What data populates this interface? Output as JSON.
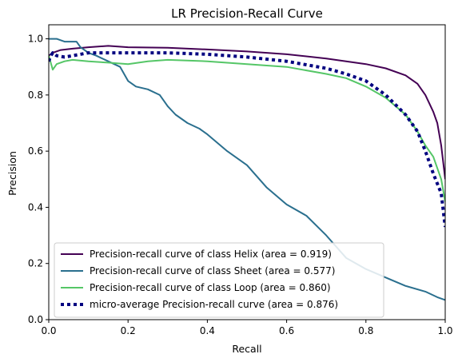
{
  "chart_data": {
    "type": "line",
    "title": "LR Precision-Recall Curve",
    "xlabel": "Recall",
    "ylabel": "Precision",
    "xlim": [
      0,
      1
    ],
    "ylim": [
      0,
      1.05
    ],
    "xticks": [
      "0.0",
      "0.2",
      "0.4",
      "0.6",
      "0.8",
      "1.0"
    ],
    "yticks": [
      "0.0",
      "0.2",
      "0.4",
      "0.6",
      "0.8",
      "1.0"
    ],
    "grid": false,
    "legend_position": "lower-left",
    "series": [
      {
        "name": "Precision-recall curve of class Helix (area = 0.919)",
        "color": "#440154",
        "style": "solid",
        "points": [
          [
            0,
            0.94
          ],
          [
            0.01,
            0.95
          ],
          [
            0.03,
            0.96
          ],
          [
            0.06,
            0.965
          ],
          [
            0.1,
            0.97
          ],
          [
            0.15,
            0.975
          ],
          [
            0.2,
            0.97
          ],
          [
            0.3,
            0.968
          ],
          [
            0.4,
            0.962
          ],
          [
            0.5,
            0.955
          ],
          [
            0.6,
            0.945
          ],
          [
            0.7,
            0.93
          ],
          [
            0.8,
            0.91
          ],
          [
            0.85,
            0.895
          ],
          [
            0.9,
            0.87
          ],
          [
            0.93,
            0.84
          ],
          [
            0.95,
            0.8
          ],
          [
            0.97,
            0.74
          ],
          [
            0.98,
            0.7
          ],
          [
            0.99,
            0.62
          ],
          [
            1.0,
            0.5
          ]
        ]
      },
      {
        "name": "Precision-recall curve of class Sheet (area = 0.577)",
        "color": "#2a6f8e",
        "style": "solid",
        "points": [
          [
            0,
            1.0
          ],
          [
            0.02,
            1.0
          ],
          [
            0.04,
            0.99
          ],
          [
            0.07,
            0.99
          ],
          [
            0.08,
            0.97
          ],
          [
            0.1,
            0.95
          ],
          [
            0.12,
            0.94
          ],
          [
            0.15,
            0.92
          ],
          [
            0.18,
            0.9
          ],
          [
            0.2,
            0.85
          ],
          [
            0.22,
            0.83
          ],
          [
            0.25,
            0.82
          ],
          [
            0.28,
            0.8
          ],
          [
            0.3,
            0.76
          ],
          [
            0.32,
            0.73
          ],
          [
            0.35,
            0.7
          ],
          [
            0.38,
            0.68
          ],
          [
            0.4,
            0.66
          ],
          [
            0.45,
            0.6
          ],
          [
            0.5,
            0.55
          ],
          [
            0.55,
            0.47
          ],
          [
            0.6,
            0.41
          ],
          [
            0.65,
            0.37
          ],
          [
            0.7,
            0.3
          ],
          [
            0.75,
            0.22
          ],
          [
            0.8,
            0.18
          ],
          [
            0.85,
            0.15
          ],
          [
            0.9,
            0.12
          ],
          [
            0.95,
            0.1
          ],
          [
            0.98,
            0.08
          ],
          [
            1.0,
            0.07
          ]
        ]
      },
      {
        "name": "Precision-recall curve of class Loop (area = 0.860)",
        "color": "#55c667",
        "style": "solid",
        "points": [
          [
            0,
            0.94
          ],
          [
            0.01,
            0.89
          ],
          [
            0.02,
            0.91
          ],
          [
            0.04,
            0.92
          ],
          [
            0.06,
            0.925
          ],
          [
            0.1,
            0.92
          ],
          [
            0.15,
            0.915
          ],
          [
            0.2,
            0.91
          ],
          [
            0.25,
            0.92
          ],
          [
            0.3,
            0.925
          ],
          [
            0.4,
            0.92
          ],
          [
            0.5,
            0.91
          ],
          [
            0.6,
            0.9
          ],
          [
            0.7,
            0.875
          ],
          [
            0.75,
            0.86
          ],
          [
            0.8,
            0.83
          ],
          [
            0.85,
            0.79
          ],
          [
            0.9,
            0.73
          ],
          [
            0.93,
            0.67
          ],
          [
            0.95,
            0.62
          ],
          [
            0.97,
            0.58
          ],
          [
            0.99,
            0.5
          ],
          [
            1.0,
            0.42
          ]
        ]
      },
      {
        "name": "micro-average Precision-recall curve (area = 0.876)",
        "color": "#000080",
        "style": "dotted",
        "points": [
          [
            0,
            0.92
          ],
          [
            0.005,
            0.94
          ],
          [
            0.01,
            0.95
          ],
          [
            0.02,
            0.94
          ],
          [
            0.04,
            0.935
          ],
          [
            0.06,
            0.94
          ],
          [
            0.1,
            0.95
          ],
          [
            0.2,
            0.95
          ],
          [
            0.3,
            0.95
          ],
          [
            0.4,
            0.945
          ],
          [
            0.5,
            0.935
          ],
          [
            0.6,
            0.92
          ],
          [
            0.7,
            0.895
          ],
          [
            0.75,
            0.875
          ],
          [
            0.8,
            0.85
          ],
          [
            0.85,
            0.8
          ],
          [
            0.9,
            0.73
          ],
          [
            0.93,
            0.67
          ],
          [
            0.95,
            0.6
          ],
          [
            0.97,
            0.52
          ],
          [
            0.99,
            0.45
          ],
          [
            1.0,
            0.33
          ]
        ]
      }
    ]
  }
}
